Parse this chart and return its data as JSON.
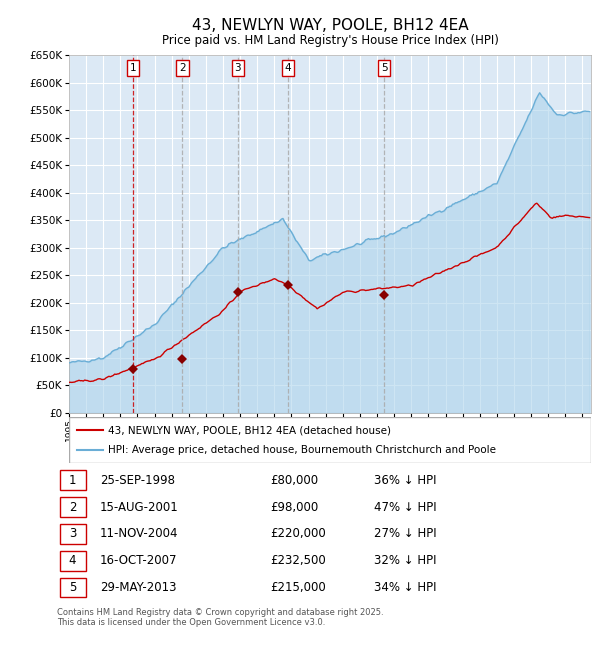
{
  "title": "43, NEWLYN WAY, POOLE, BH12 4EA",
  "subtitle": "Price paid vs. HM Land Registry's House Price Index (HPI)",
  "title_fontsize": 11,
  "subtitle_fontsize": 8.5,
  "ylim": [
    0,
    650000
  ],
  "yticks": [
    0,
    50000,
    100000,
    150000,
    200000,
    250000,
    300000,
    350000,
    400000,
    450000,
    500000,
    550000,
    600000,
    650000
  ],
  "background_color": "#dce9f5",
  "grid_color": "#ffffff",
  "hpi_color": "#6aaed6",
  "hpi_fill_color": "#aed4ec",
  "price_color": "#cc0000",
  "sale_marker_color": "#880000",
  "sale_dates_year": [
    1998.73,
    2001.62,
    2004.87,
    2007.79,
    2013.41
  ],
  "sale_labels": [
    "1",
    "2",
    "3",
    "4",
    "5"
  ],
  "sale_prices": [
    80000,
    98000,
    220000,
    232500,
    215000
  ],
  "vline_colors": [
    "#cc0000",
    "#aaaaaa",
    "#aaaaaa",
    "#aaaaaa",
    "#aaaaaa"
  ],
  "table_rows": [
    [
      "1",
      "25-SEP-1998",
      "£80,000",
      "36% ↓ HPI"
    ],
    [
      "2",
      "15-AUG-2001",
      "£98,000",
      "47% ↓ HPI"
    ],
    [
      "3",
      "11-NOV-2004",
      "£220,000",
      "27% ↓ HPI"
    ],
    [
      "4",
      "16-OCT-2007",
      "£232,500",
      "32% ↓ HPI"
    ],
    [
      "5",
      "29-MAY-2013",
      "£215,000",
      "34% ↓ HPI"
    ]
  ],
  "legend_line1": "43, NEWLYN WAY, POOLE, BH12 4EA (detached house)",
  "legend_line2": "HPI: Average price, detached house, Bournemouth Christchurch and Poole",
  "footer": "Contains HM Land Registry data © Crown copyright and database right 2025.\nThis data is licensed under the Open Government Licence v3.0.",
  "xmin": 1995,
  "xmax": 2025.5
}
